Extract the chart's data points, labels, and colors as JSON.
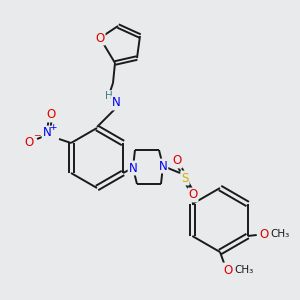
{
  "bg_color": "#e8eaec",
  "bond_color": "#1a1a1a",
  "atom_colors": {
    "O": "#e00000",
    "N": "#0000ee",
    "S": "#c8b400",
    "H": "#3a8080",
    "C": "#1a1a1a"
  },
  "lw": 1.4,
  "fs": 8.5,
  "fs_small": 7.5
}
